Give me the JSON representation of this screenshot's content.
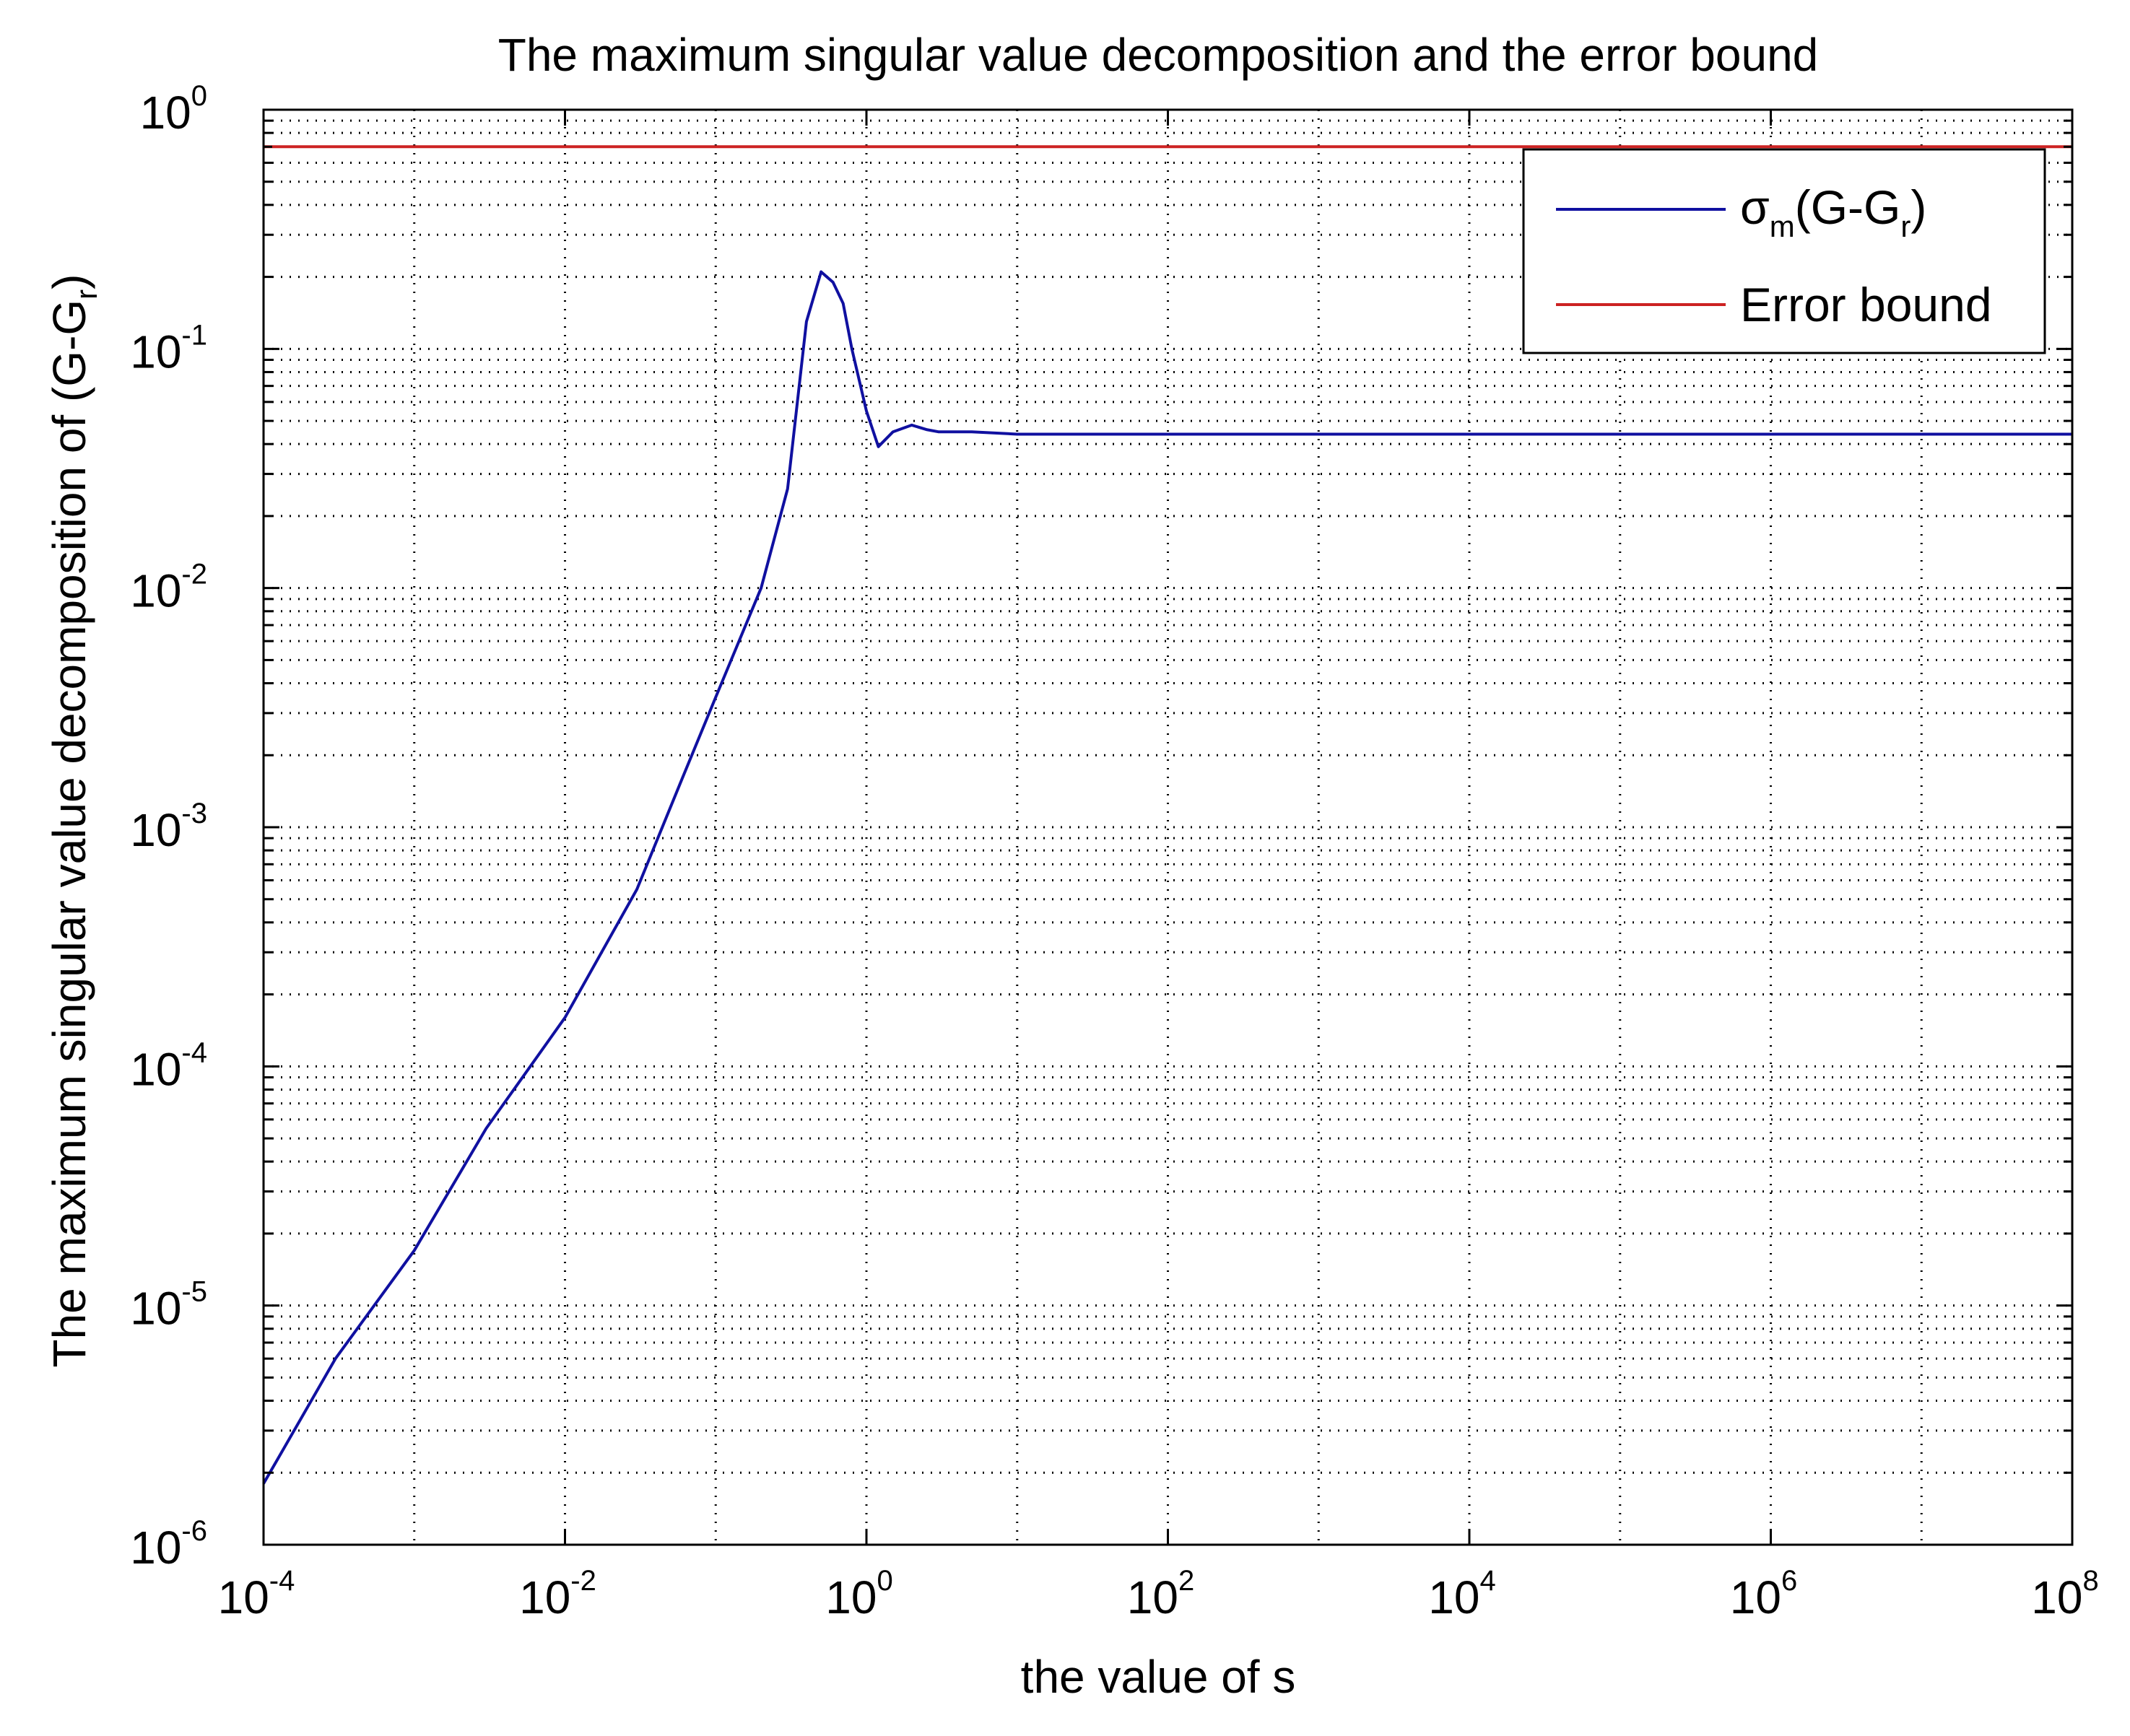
{
  "chart_data": {
    "type": "line",
    "title": "The maximum singular value decomposition and the error bound",
    "xlabel": "the value of s",
    "ylabel": {
      "main": "The maximum singular value decomposition of (G-G",
      "sub": "r",
      "close": ")"
    },
    "x_scale": "log",
    "y_scale": "log",
    "xlim": [
      0.0001,
      100000000
    ],
    "ylim": [
      1e-06,
      1
    ],
    "grid": true,
    "legend_position": "top-right",
    "x_ticks": [
      {
        "base": "10",
        "exp": "-4",
        "value": 0.0001
      },
      {
        "base": "10",
        "exp": "-2",
        "value": 0.01
      },
      {
        "base": "10",
        "exp": "0",
        "value": 1
      },
      {
        "base": "10",
        "exp": "2",
        "value": 100
      },
      {
        "base": "10",
        "exp": "4",
        "value": 10000
      },
      {
        "base": "10",
        "exp": "6",
        "value": 1000000
      },
      {
        "base": "10",
        "exp": "8",
        "value": 100000000
      }
    ],
    "y_ticks": [
      {
        "base": "10",
        "exp": "-6",
        "value": 1e-06
      },
      {
        "base": "10",
        "exp": "-5",
        "value": 1e-05
      },
      {
        "base": "10",
        "exp": "-4",
        "value": 0.0001
      },
      {
        "base": "10",
        "exp": "-3",
        "value": 0.001
      },
      {
        "base": "10",
        "exp": "-2",
        "value": 0.01
      },
      {
        "base": "10",
        "exp": "-1",
        "value": 0.1
      },
      {
        "base": "10",
        "exp": "0",
        "value": 1
      }
    ],
    "series": [
      {
        "name": "σm(G-Gr)",
        "legend": {
          "symbol": "σ",
          "sub1": "m",
          "mid": "(G-G",
          "sub2": "r",
          "close": ")"
        },
        "color": "#1010a0",
        "x": [
          0.0001,
          0.0003,
          0.001,
          0.003,
          0.01,
          0.03,
          0.06,
          0.1,
          0.2,
          0.3,
          0.4,
          0.5,
          0.6,
          0.7,
          0.8,
          1.0,
          1.2,
          1.5,
          2.0,
          2.5,
          3.0,
          5.0,
          10,
          100,
          10000,
          100000000
        ],
        "y": [
          1.8e-06,
          6e-06,
          1.7e-05,
          5.5e-05,
          0.00016,
          0.00055,
          0.0016,
          0.0035,
          0.01,
          0.026,
          0.13,
          0.21,
          0.19,
          0.155,
          0.1,
          0.055,
          0.039,
          0.045,
          0.048,
          0.046,
          0.045,
          0.045,
          0.044,
          0.044,
          0.044,
          0.044
        ]
      },
      {
        "name": "Error bound",
        "legend": {
          "symbol": "",
          "sub1": "",
          "mid": "Error bound",
          "sub2": "",
          "close": ""
        },
        "color": "#cc2222",
        "x": [
          0.0001,
          100000000
        ],
        "y": [
          0.7,
          0.7
        ]
      }
    ]
  }
}
